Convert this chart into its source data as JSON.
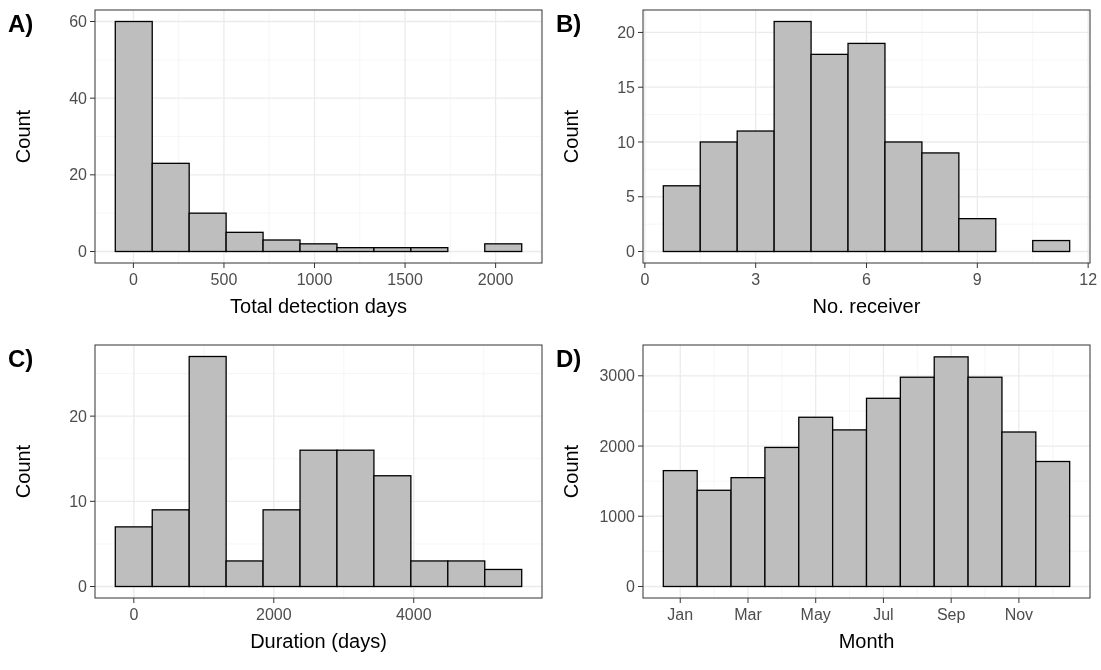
{
  "chart_data": [
    {
      "type": "histogram",
      "title": "A)",
      "xlabel": "Total detection days",
      "ylabel": "Count",
      "color": "#bebebe",
      "grid": true,
      "bins": [
        -100,
        104,
        308,
        512,
        716,
        920,
        1124,
        1328,
        1532,
        1736,
        1940,
        2144
      ],
      "values": [
        60,
        23,
        10,
        5,
        3,
        2,
        1,
        1,
        1,
        0,
        2
      ],
      "xlim": [
        -212,
        2256
      ],
      "xticks": [
        0,
        500,
        1000,
        1500,
        2000
      ],
      "ylim": [
        -3,
        63
      ],
      "yticks": [
        0,
        20,
        40,
        60
      ]
    },
    {
      "type": "histogram",
      "title": "B)",
      "xlabel": "No. receiver",
      "ylabel": "Count",
      "color": "#bebebe",
      "grid": true,
      "bins": [
        0.5,
        1.5,
        2.5,
        3.5,
        4.5,
        5.5,
        6.5,
        7.5,
        8.5,
        9.5,
        10.5,
        11.5
      ],
      "values": [
        6,
        10,
        11,
        21,
        18,
        19,
        10,
        9,
        3,
        0,
        1
      ],
      "xlim": [
        -0.05,
        12.05
      ],
      "xticks": [
        0,
        3,
        6,
        9,
        12
      ],
      "ylim": [
        -1.05,
        22.05
      ],
      "yticks": [
        0,
        5,
        10,
        15,
        20
      ]
    },
    {
      "type": "histogram",
      "title": "C)",
      "xlabel": "Duration (days)",
      "ylabel": "Count",
      "color": "#bebebe",
      "grid": true,
      "bins": [
        -265,
        263,
        791,
        1319,
        1847,
        2375,
        2903,
        3431,
        3959,
        4487,
        5015,
        5543
      ],
      "values": [
        7,
        9,
        27,
        3,
        9,
        16,
        16,
        13,
        3,
        3,
        2
      ],
      "xlim": [
        -555,
        5833
      ],
      "xticks": [
        0,
        2000,
        4000
      ],
      "ylim": [
        -1.35,
        28.35
      ],
      "yticks": [
        0,
        10,
        20
      ]
    },
    {
      "type": "bar",
      "title": "D)",
      "xlabel": "Month",
      "ylabel": "Count",
      "color": "#bebebe",
      "grid": true,
      "categories": [
        "Jan",
        null,
        "Mar",
        null,
        "May",
        null,
        "Jul",
        null,
        "Sep",
        null,
        "Nov",
        null
      ],
      "values": [
        1650,
        1370,
        1550,
        1980,
        2410,
        2230,
        2680,
        2980,
        3270,
        2980,
        2200,
        1780
      ],
      "ylim": [
        -164,
        3439
      ],
      "yticks": [
        0,
        1000,
        2000,
        3000
      ]
    }
  ]
}
